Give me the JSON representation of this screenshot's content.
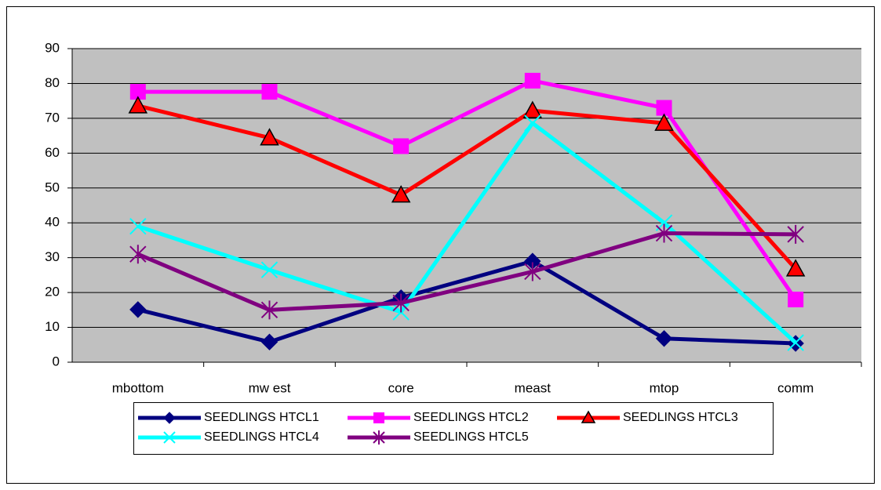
{
  "chart_data": {
    "type": "line",
    "categories": [
      "mbottom",
      "mw est",
      "core",
      "meast",
      "mtop",
      "comm"
    ],
    "series": [
      {
        "name": "SEEDLINGS HTCL1",
        "color": "#000080",
        "marker": "diamond",
        "values": [
          15.1,
          5.8,
          18.5,
          29,
          6.8,
          5.4
        ]
      },
      {
        "name": "SEEDLINGS HTCL2",
        "color": "#ff00ff",
        "marker": "square",
        "values": [
          77.6,
          77.6,
          62,
          80.8,
          73,
          18
        ]
      },
      {
        "name": "SEEDLINGS HTCL3",
        "color": "#ff0000",
        "marker": "triangle",
        "values": [
          73.6,
          64.4,
          48,
          72.2,
          68.6,
          26.8
        ]
      },
      {
        "name": "SEEDLINGS HTCL4",
        "color": "#00ffff",
        "marker": "x",
        "values": [
          39,
          26.5,
          14.4,
          68.6,
          40,
          5.6
        ]
      },
      {
        "name": "SEEDLINGS HTCL5",
        "color": "#800080",
        "marker": "asterisk",
        "values": [
          31,
          15,
          17,
          26,
          37,
          36.7
        ]
      }
    ],
    "ylim": [
      0,
      90
    ],
    "yticks": [
      0,
      10,
      20,
      30,
      40,
      50,
      60,
      70,
      80,
      90
    ],
    "grid": true,
    "legend": "bottom"
  }
}
